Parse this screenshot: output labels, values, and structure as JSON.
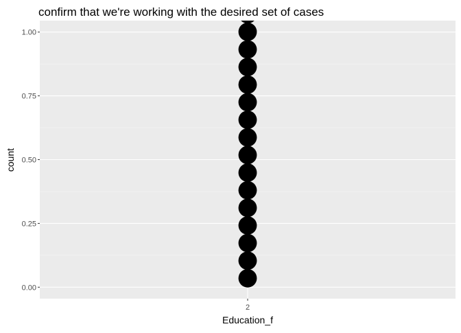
{
  "chart_data": {
    "type": "dotplot",
    "title": "confirm that we're working with the desired set of cases",
    "xlabel": "Education_f",
    "ylabel": "count",
    "categories": [
      "2"
    ],
    "ylim": [
      -0.045,
      1.045
    ],
    "yticks": [
      {
        "value": 0.0,
        "label": "0.00"
      },
      {
        "value": 0.25,
        "label": "0.25"
      },
      {
        "value": 0.5,
        "label": "0.50"
      },
      {
        "value": 0.75,
        "label": "0.75"
      },
      {
        "value": 1.0,
        "label": "1.00"
      }
    ],
    "points": [
      {
        "x": "2",
        "y": 0.035
      },
      {
        "x": "2",
        "y": 0.104
      },
      {
        "x": "2",
        "y": 0.173
      },
      {
        "x": "2",
        "y": 0.242
      },
      {
        "x": "2",
        "y": 0.311
      },
      {
        "x": "2",
        "y": 0.38
      },
      {
        "x": "2",
        "y": 0.449
      },
      {
        "x": "2",
        "y": 0.518
      },
      {
        "x": "2",
        "y": 0.587
      },
      {
        "x": "2",
        "y": 0.656
      },
      {
        "x": "2",
        "y": 0.725
      },
      {
        "x": "2",
        "y": 0.794
      },
      {
        "x": "2",
        "y": 0.863
      },
      {
        "x": "2",
        "y": 0.932
      },
      {
        "x": "2",
        "y": 1.001
      },
      {
        "x": "2",
        "y": 1.07
      }
    ],
    "grid": true,
    "colors": {
      "panel": "#EBEBEB",
      "grid_major": "#FFFFFF",
      "grid_minor": "#F5F5F5",
      "point": "#000000",
      "tick_text": "#4D4D4D"
    }
  }
}
